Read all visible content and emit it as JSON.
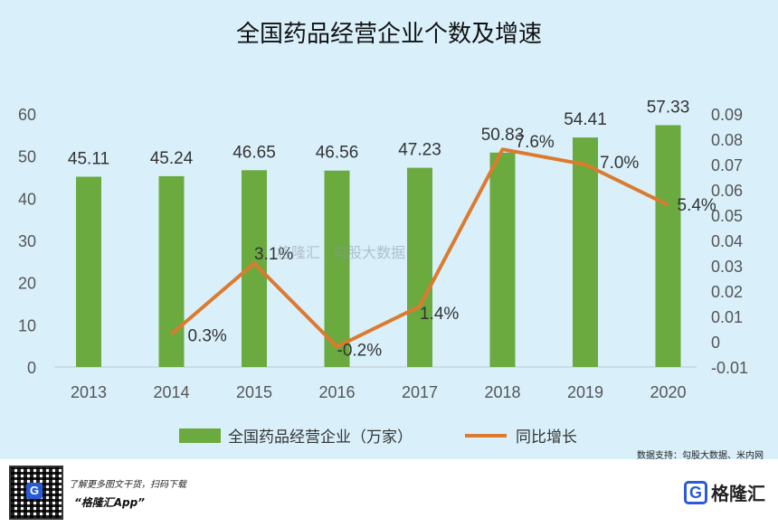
{
  "chart_data": {
    "type": "bar+line",
    "title": "全国药品经营企业个数及增速",
    "categories": [
      "2013",
      "2014",
      "2015",
      "2016",
      "2017",
      "2018",
      "2019",
      "2020"
    ],
    "series": [
      {
        "name": "全国药品经营企业（万家）",
        "type": "bar",
        "axis": "left",
        "color": "#6aaa3f",
        "values": [
          45.11,
          45.24,
          46.65,
          46.56,
          47.23,
          50.83,
          54.41,
          57.33
        ],
        "labels": [
          "45.11",
          "45.24",
          "46.65",
          "46.56",
          "47.23",
          "50.83",
          "54.41",
          "57.33"
        ]
      },
      {
        "name": "同比增长",
        "type": "line",
        "axis": "right",
        "color": "#dc7b2f",
        "x": [
          "2014",
          "2015",
          "2016",
          "2017",
          "2018",
          "2019",
          "2020"
        ],
        "values": [
          0.003,
          0.031,
          -0.002,
          0.014,
          0.076,
          0.07,
          0.054
        ],
        "labels": [
          "0.3%",
          "3.1%",
          "-0.2%",
          "1.4%",
          "7.6%",
          "7.0%",
          "5.4%"
        ]
      }
    ],
    "left_axis": {
      "ylim": [
        0,
        60
      ],
      "ticks": [
        "0",
        "10",
        "20",
        "30",
        "40",
        "50",
        "60"
      ]
    },
    "right_axis": {
      "ylim": [
        -0.01,
        0.09
      ],
      "ticks": [
        "-0.01",
        "0",
        "0.01",
        "0.02",
        "0.03",
        "0.04",
        "0.05",
        "0.06",
        "0.07",
        "0.08",
        "0.09"
      ]
    },
    "legend": {
      "position": "bottom"
    },
    "grid": false
  },
  "footer": {
    "source": "数据支持：勾股大数据、米内网",
    "promo_line1": "了解更多图文干货，扫码下载",
    "promo_line2": "“格隆汇App”",
    "qr_badge": "G",
    "logo_mark": "G",
    "logo_text": "格隆汇"
  },
  "watermark": {
    "left": "格隆汇",
    "right": "勾股大数据"
  }
}
